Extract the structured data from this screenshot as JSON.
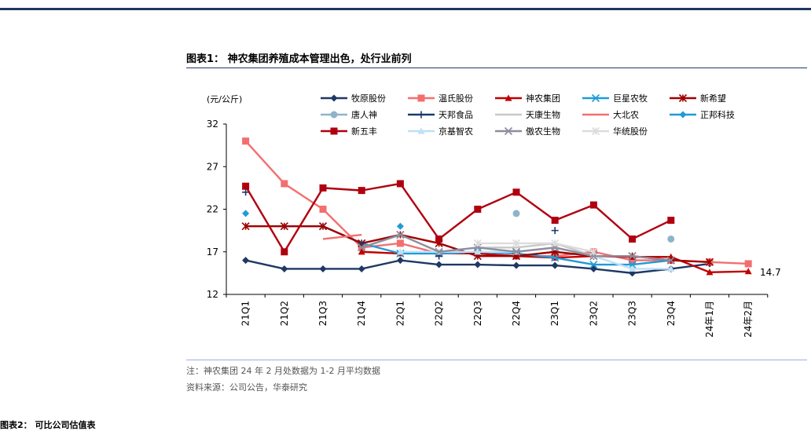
{
  "figure": {
    "title": "图表1：  神农集团养殖成本管理出色，处行业前列",
    "note": "注：神农集团 24 年 2 月处数据为 1-2 月平均数据",
    "source": "资料来源：公司公告，华泰研究",
    "next_title": "图表2：  可比公司估值表"
  },
  "chart_data": {
    "type": "line",
    "ylabel": "(元/公斤)",
    "ylim": [
      12,
      32
    ],
    "yticks": [
      12,
      17,
      22,
      27,
      32
    ],
    "categories": [
      "21Q1",
      "21Q2",
      "21Q3",
      "21Q4",
      "22Q1",
      "22Q2",
      "22Q3",
      "22Q4",
      "23Q1",
      "23Q2",
      "23Q3",
      "23Q4",
      "24年1月",
      "24年2月"
    ],
    "annotation": "14.7",
    "series": [
      {
        "name": "牧原股份",
        "color": "#1f3864",
        "marker": "diamond",
        "values": [
          16.0,
          15.0,
          15.0,
          15.0,
          16.0,
          15.5,
          15.5,
          15.4,
          15.4,
          15.0,
          14.5,
          15.0,
          15.6,
          null
        ]
      },
      {
        "name": "温氏股份",
        "color": "#f36f6f",
        "marker": "square",
        "values": [
          30.0,
          25.0,
          22.0,
          17.5,
          18.0,
          16.8,
          16.8,
          16.5,
          16.5,
          17.0,
          16.0,
          16.0,
          15.8,
          15.6
        ]
      },
      {
        "name": "神农集团",
        "color": "#c00000",
        "marker": "triangle",
        "values": [
          null,
          null,
          null,
          17.0,
          16.8,
          16.9,
          16.8,
          16.5,
          16.3,
          16.5,
          16.4,
          16.4,
          14.6,
          14.7
        ]
      },
      {
        "name": "巨星农牧",
        "color": "#1f9bd7",
        "marker": "x",
        "values": [
          null,
          20.0,
          20.0,
          18.0,
          16.8,
          16.8,
          17.0,
          16.8,
          16.3,
          15.5,
          15.5,
          16.0,
          null,
          null
        ]
      },
      {
        "name": "新希望",
        "color": "#a00000",
        "marker": "star",
        "values": [
          20.0,
          20.0,
          20.0,
          18.0,
          19.0,
          18.0,
          16.5,
          16.5,
          17.0,
          16.5,
          16.5,
          16.0,
          15.8,
          null
        ]
      },
      {
        "name": "唐人神",
        "color": "#8fb4c9",
        "marker": "circle",
        "values": [
          null,
          null,
          null,
          null,
          null,
          null,
          null,
          21.5,
          null,
          null,
          null,
          18.5,
          null,
          null
        ]
      },
      {
        "name": "天邦食品",
        "color": "#1a3a6b",
        "marker": "plus",
        "values": [
          24.0,
          null,
          null,
          18.0,
          null,
          16.5,
          null,
          null,
          19.5,
          null,
          null,
          null,
          null,
          null
        ]
      },
      {
        "name": "天康生物",
        "color": "#c8c8c8",
        "marker": "none",
        "values": [
          null,
          null,
          null,
          null,
          null,
          null,
          17.5,
          17.5,
          18.0,
          16.5,
          null,
          null,
          null,
          null
        ]
      },
      {
        "name": "大北农",
        "color": "#f36f6f",
        "marker": "none",
        "values": [
          null,
          null,
          18.5,
          19.0,
          null,
          null,
          null,
          null,
          null,
          null,
          null,
          null,
          null,
          null
        ]
      },
      {
        "name": "正邦科技",
        "color": "#1f9bd7",
        "marker": "diamond",
        "values": [
          21.5,
          null,
          null,
          null,
          20.0,
          null,
          null,
          null,
          null,
          null,
          null,
          null,
          null,
          null
        ]
      },
      {
        "name": "新五丰",
        "color": "#b00010",
        "marker": "square",
        "values": [
          24.7,
          17.0,
          24.5,
          24.2,
          25.0,
          18.5,
          22.0,
          24.0,
          20.7,
          22.5,
          18.5,
          20.7,
          null,
          null
        ]
      },
      {
        "name": "京基智农",
        "color": "#bfe0f5",
        "marker": "triangle",
        "values": [
          null,
          null,
          null,
          null,
          17.0,
          17.0,
          17.0,
          17.0,
          17.5,
          16.5,
          15.0,
          15.0,
          null,
          null
        ]
      },
      {
        "name": "傲农生物",
        "color": "#8d8d9e",
        "marker": "x",
        "values": [
          null,
          null,
          null,
          17.5,
          19.0,
          17.0,
          17.5,
          17.0,
          17.5,
          16.5,
          16.5,
          16.0,
          null,
          null
        ]
      },
      {
        "name": "华统股份",
        "color": "#dcdcdc",
        "marker": "star",
        "values": [
          null,
          null,
          null,
          null,
          null,
          null,
          18.0,
          18.0,
          18.0,
          17.0,
          null,
          null,
          null,
          null
        ]
      }
    ]
  }
}
